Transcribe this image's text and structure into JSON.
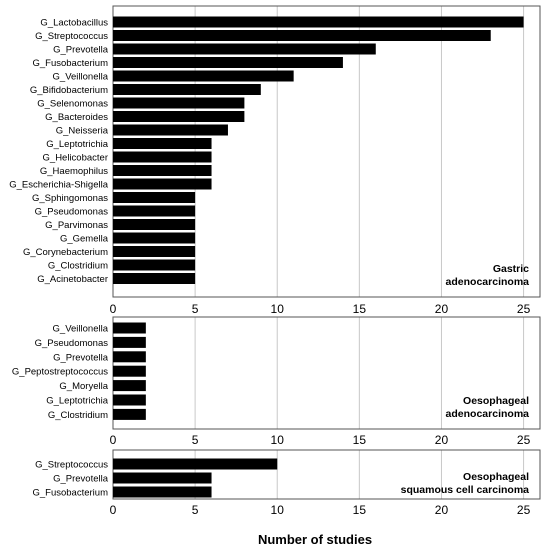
{
  "chart_data": [
    {
      "type": "bar",
      "orientation": "horizontal",
      "annotation": [
        "Gastric",
        "adenocarcinoma"
      ],
      "categories": [
        "G_Lactobacillus",
        "G_Streptococcus",
        "G_Prevotella",
        "G_Fusobacterium",
        "G_Veillonella",
        "G_Bifidobacterium",
        "G_Selenomonas",
        "G_Bacteroides",
        "G_Neisseria",
        "G_Leptotrichia",
        "G_Helicobacter",
        "G_Haemophilus",
        "G_Escherichia-Shigella",
        "G_Sphingomonas",
        "G_Pseudomonas",
        "G_Parvimonas",
        "G_Gemella",
        "G_Corynebacterium",
        "G_Clostridium",
        "G_Acinetobacter"
      ],
      "values": [
        25,
        23,
        16,
        14,
        11,
        9,
        8,
        8,
        7,
        6,
        6,
        6,
        6,
        5,
        5,
        5,
        5,
        5,
        5,
        5
      ],
      "xlim": [
        0,
        26
      ],
      "xticks": [
        0,
        5,
        10,
        15,
        20,
        25
      ],
      "grid": true
    },
    {
      "type": "bar",
      "orientation": "horizontal",
      "annotation": [
        "Oesophageal",
        "adenocarcinoma"
      ],
      "categories": [
        "G_Veillonella",
        "G_Pseudomonas",
        "G_Prevotella",
        "G_Peptostreptococcus",
        "G_Moryella",
        "G_Leptotrichia",
        "G_Clostridium"
      ],
      "values": [
        2,
        2,
        2,
        2,
        2,
        2,
        2
      ],
      "xlim": [
        0,
        26
      ],
      "xticks": [
        0,
        5,
        10,
        15,
        20,
        25
      ],
      "grid": true
    },
    {
      "type": "bar",
      "orientation": "horizontal",
      "annotation": [
        "Oesophageal",
        "squamous cell carcinoma"
      ],
      "categories": [
        "G_Streptococcus",
        "G_Prevotella",
        "G_Fusobacterium"
      ],
      "values": [
        10,
        6,
        6
      ],
      "xlim": [
        0,
        26
      ],
      "xticks": [
        0,
        5,
        10,
        15,
        20,
        25
      ],
      "grid": true
    }
  ],
  "xlabel": "Number of studies",
  "colors": {
    "bar": "#000000",
    "grid": "#c8c8c8",
    "frame": "#555555"
  }
}
